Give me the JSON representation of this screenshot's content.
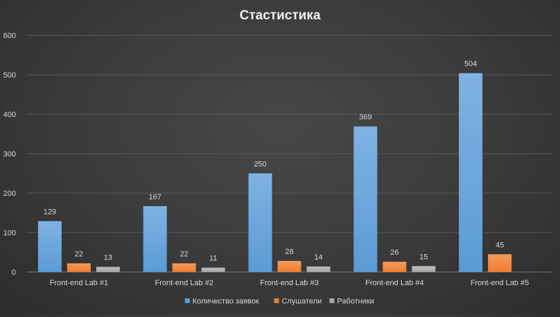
{
  "chart_data": {
    "type": "bar",
    "title": "Стастистика",
    "categories": [
      "Front-end Lab #1",
      "Front-end Lab #2",
      "Front-end Lab #3",
      "Front-end Lab #4",
      "Front-end Lab #5"
    ],
    "series": [
      {
        "name": "Количество заявок",
        "values": [
          129,
          167,
          250,
          369,
          504
        ]
      },
      {
        "name": "Слушатели",
        "values": [
          22,
          22,
          28,
          26,
          45
        ]
      },
      {
        "name": "Работники",
        "values": [
          13,
          11,
          14,
          15,
          null
        ]
      }
    ],
    "ylim": [
      0,
      600
    ],
    "yticks": [
      0,
      100,
      200,
      300,
      400,
      500,
      600
    ],
    "grid": true,
    "legend_position": "bottom",
    "data_labels": true,
    "colors": {
      "series": [
        "#5b9bd5",
        "#ed7d31",
        "#a5a5a5"
      ],
      "series_light": [
        "#7fb2e3",
        "#f59a5a",
        "#bdbdbd"
      ],
      "gridline": "#5a5a5a",
      "axis_text": "#d9d9d9",
      "title_text": "#f2f2f2"
    }
  }
}
